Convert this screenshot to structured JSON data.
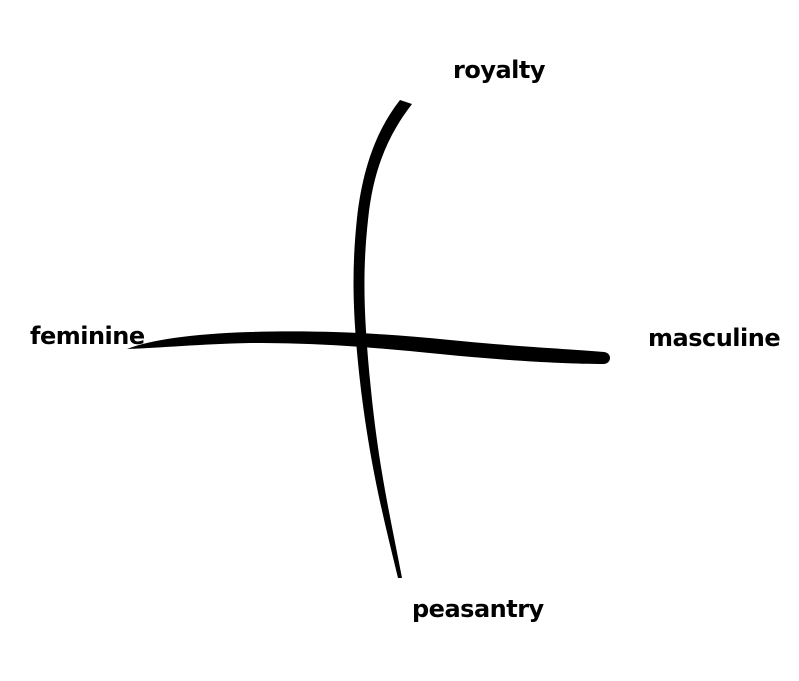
{
  "labels": {
    "top": "royalty",
    "bottom": "peasantry",
    "left": "feminine",
    "right": "masculine"
  },
  "colors": {
    "stroke": "#000000",
    "background": "#ffffff"
  }
}
